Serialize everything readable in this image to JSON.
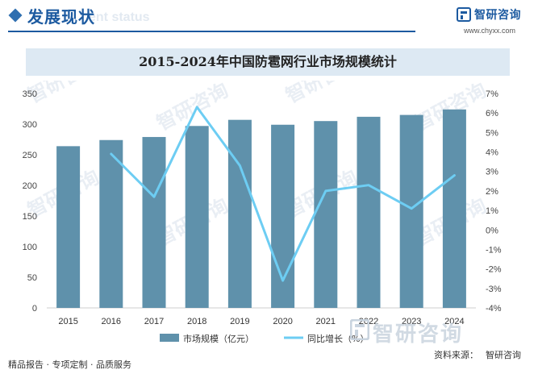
{
  "header": {
    "section_title": "发展现状",
    "section_title_ghost": "ent status",
    "logo_name": "智研咨询",
    "logo_url": "www.chyxx.com"
  },
  "colors": {
    "bar": "#5f91ab",
    "line": "#6dcdf3",
    "brand": "#1c5aa0",
    "title_band": "#dde9f3"
  },
  "chart_data": {
    "type": "bar",
    "title": "2015-2024年中国防雹网行业市场规模统计",
    "categories": [
      "2015",
      "2016",
      "2017",
      "2018",
      "2019",
      "2020",
      "2021",
      "2022",
      "2023",
      "2024"
    ],
    "series": [
      {
        "name": "市场规模（亿元）",
        "type": "bar",
        "axis": "left",
        "values": [
          264,
          274,
          279,
          297,
          307,
          299,
          305,
          312,
          315,
          324
        ]
      },
      {
        "name": "同比增长（%）",
        "type": "line",
        "axis": "right",
        "values": [
          null,
          3.9,
          1.7,
          6.3,
          3.3,
          -2.6,
          2.0,
          2.3,
          1.1,
          2.8
        ]
      }
    ],
    "y_left": {
      "min": 0,
      "max": 350,
      "ticks": [
        "0",
        "50",
        "100",
        "150",
        "200",
        "250",
        "300",
        "350"
      ]
    },
    "y_right": {
      "min": -4,
      "max": 7,
      "ticks": [
        "-4%",
        "-3%",
        "-2%",
        "-1%",
        "0%",
        "1%",
        "2%",
        "3%",
        "4%",
        "5%",
        "6%",
        "7%"
      ]
    },
    "grid": false,
    "legend_position": "bottom"
  },
  "watermark": {
    "text": "智研咨询"
  },
  "footer": {
    "left": "精品报告 · 专项定制 · 品质服务",
    "source_label": "资料来源：",
    "source": "智研咨询"
  }
}
